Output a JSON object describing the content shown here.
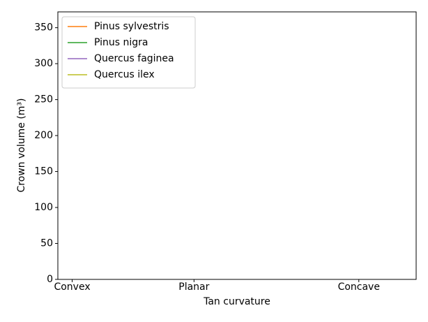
{
  "chart_data": {
    "type": "line",
    "xlabel": "Tan curvature",
    "ylabel": "Crown volume (m³)",
    "xlim": [
      0,
      100
    ],
    "xticks": [
      {
        "value": 4,
        "label": "Convex"
      },
      {
        "value": 38,
        "label": "Planar"
      },
      {
        "value": 84,
        "label": "Concave"
      }
    ],
    "ylim": [
      0,
      372
    ],
    "yticks": [
      0,
      50,
      100,
      150,
      200,
      250,
      300,
      350
    ],
    "legend": "upper left",
    "series": [
      {
        "name": "Pinus sylvestris",
        "color": "#ff7f0e",
        "x": [],
        "values": []
      },
      {
        "name": "Pinus nigra",
        "color": "#2ca02c",
        "x": [],
        "values": []
      },
      {
        "name": "Quercus faginea",
        "color": "#9467bd",
        "x": [],
        "values": []
      },
      {
        "name": "Quercus ilex",
        "color": "#bcbd22",
        "x": [],
        "values": []
      }
    ]
  }
}
